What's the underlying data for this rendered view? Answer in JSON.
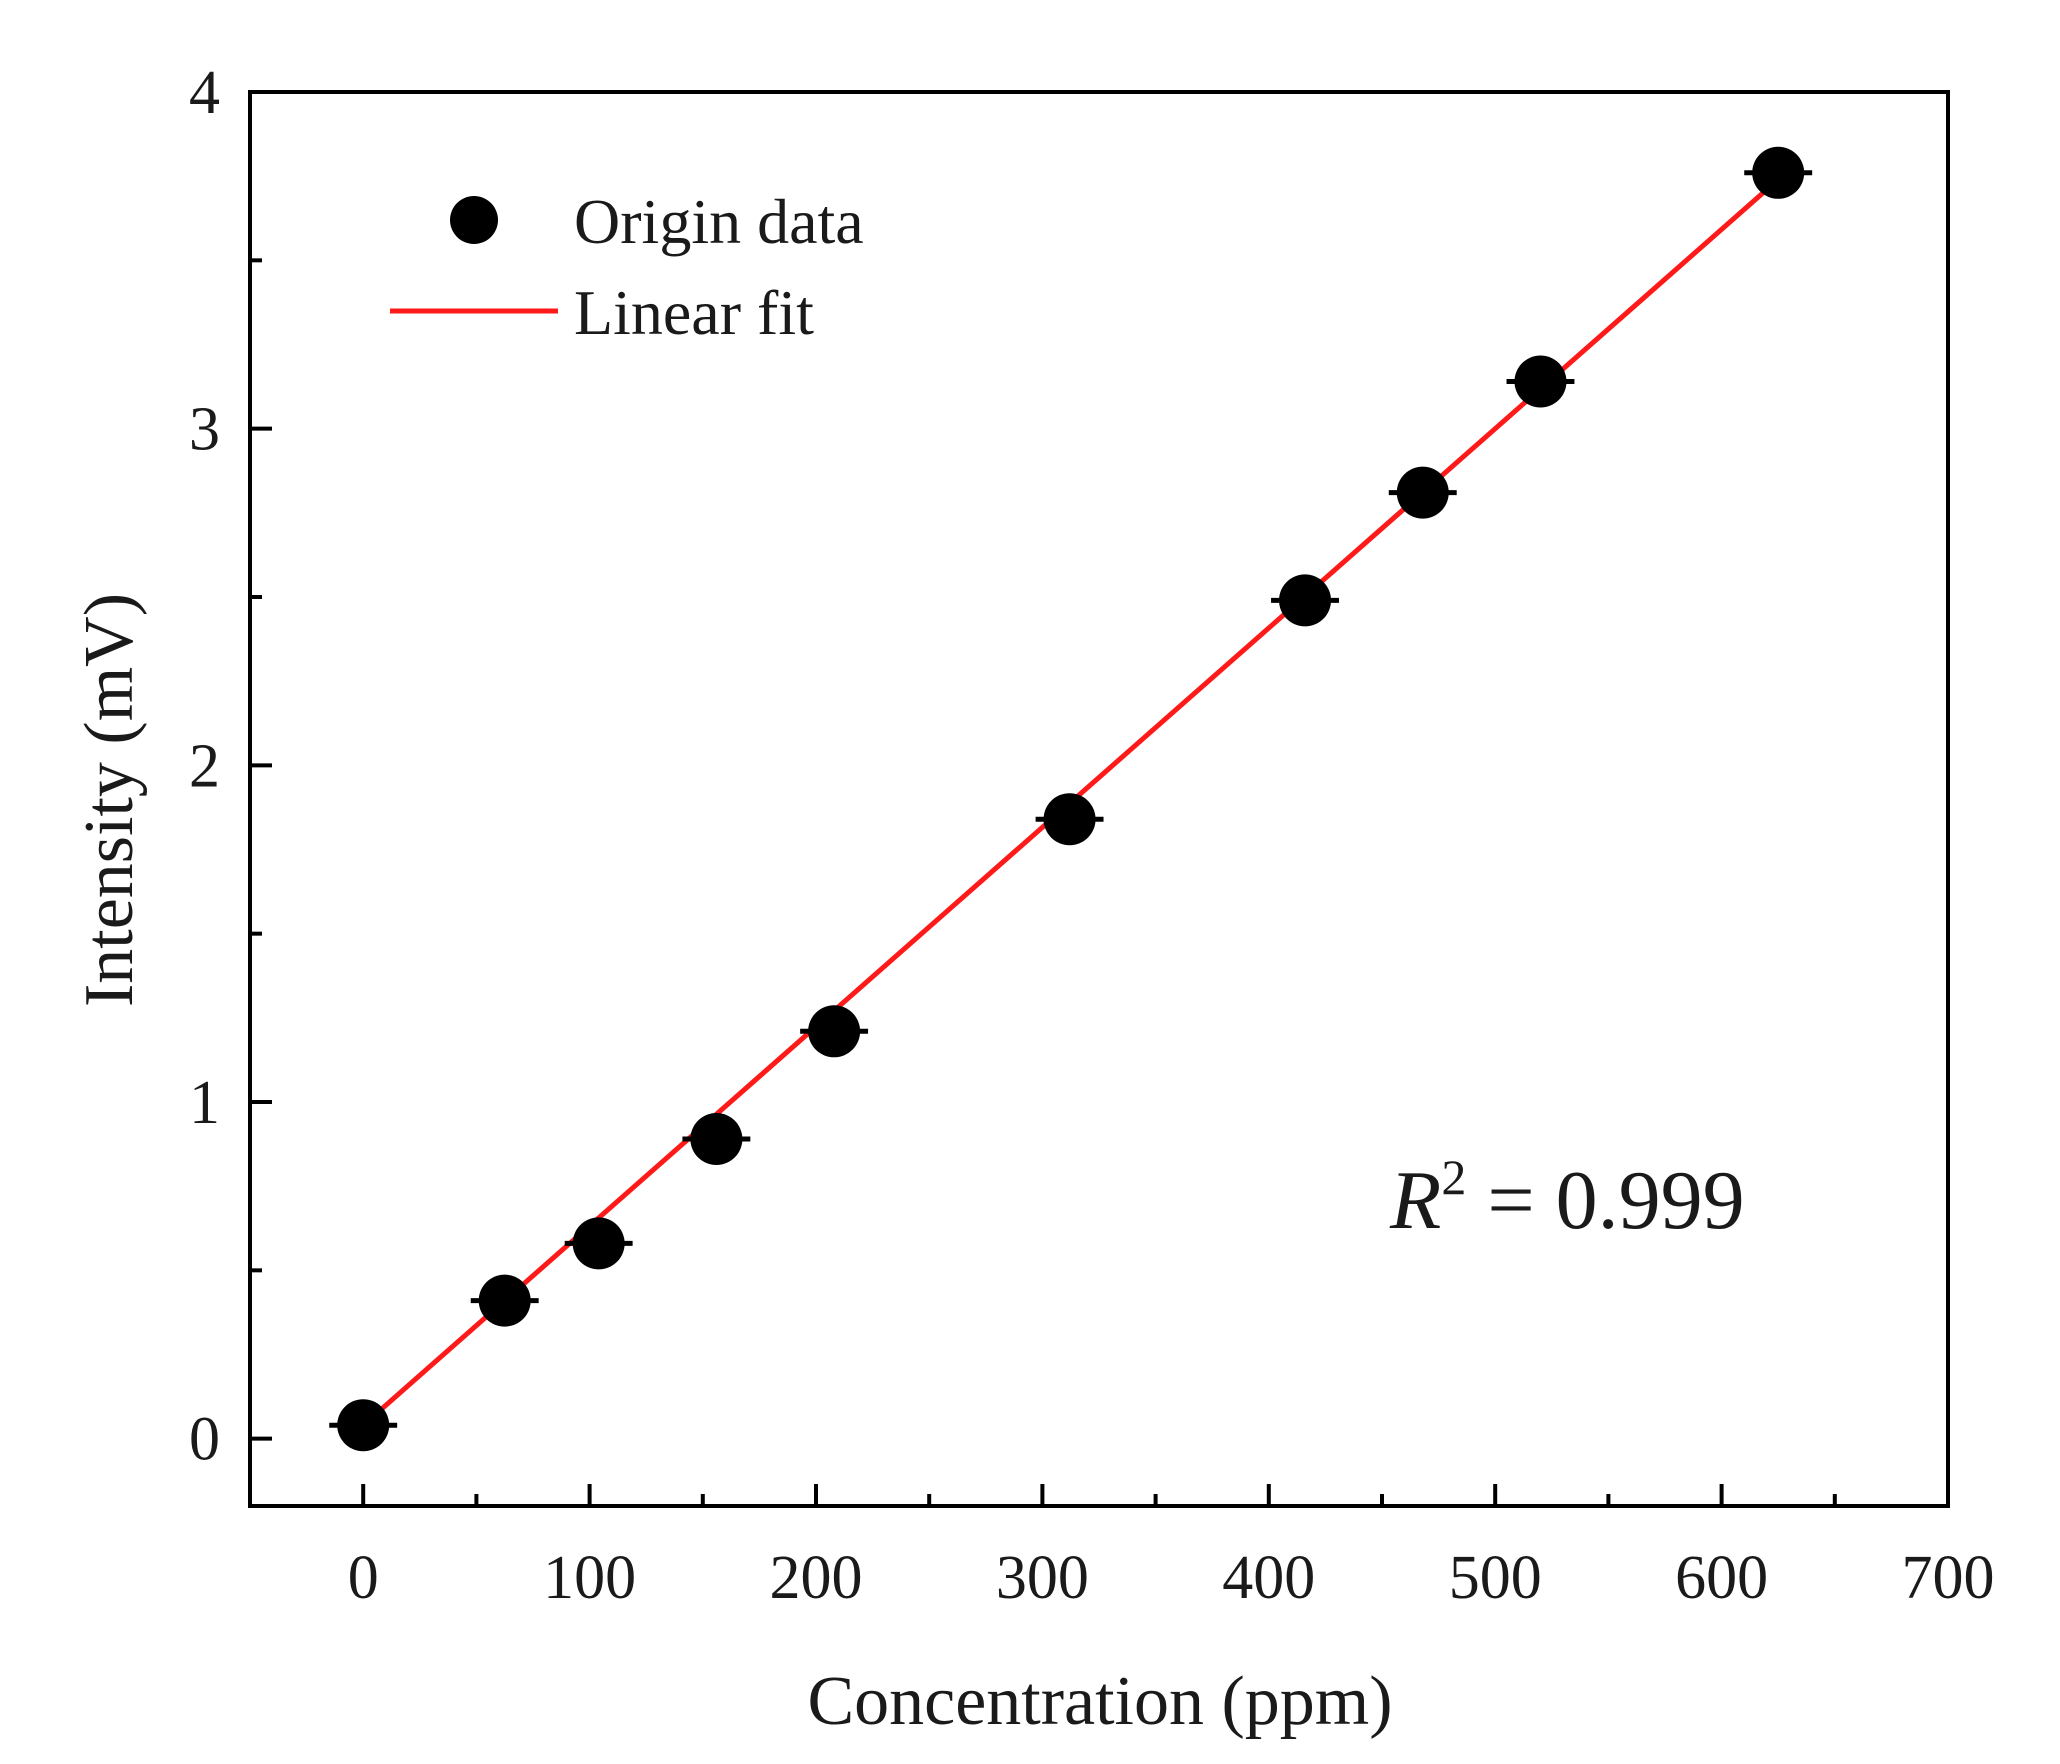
{
  "chart_data": {
    "type": "scatter",
    "title": "",
    "xlabel": "Concentration (ppm)",
    "ylabel": "Intensity (mV)",
    "xlim": [
      -50,
      700
    ],
    "ylim": [
      -0.2,
      4
    ],
    "x_ticks": [
      0,
      100,
      200,
      300,
      400,
      500,
      600,
      700
    ],
    "x_tick_labels": [
      "0",
      "100",
      "200",
      "300",
      "400",
      "500",
      "600",
      "700"
    ],
    "y_ticks": [
      0,
      1,
      2,
      3,
      4
    ],
    "y_tick_labels": [
      "0",
      "1",
      "2",
      "3",
      "4"
    ],
    "grid": false,
    "legend_position": "top-left",
    "series": [
      {
        "name": "Origin data",
        "kind": "scatter",
        "color": "#000000",
        "x": [
          0,
          62.5,
          104,
          156,
          208,
          312,
          416,
          468,
          520,
          625
        ],
        "y": [
          0.04,
          0.41,
          0.58,
          0.89,
          1.21,
          1.84,
          2.49,
          2.81,
          3.14,
          3.76
        ],
        "x_error": [
          15,
          15,
          15,
          15,
          15,
          15,
          15,
          15,
          15,
          15
        ]
      },
      {
        "name": "Linear fit",
        "kind": "line",
        "color": "#ff1a1a",
        "x": [
          0,
          625
        ],
        "y": [
          0.04,
          3.74
        ]
      }
    ],
    "annotation": {
      "r_symbol": "R",
      "superscript": "2",
      "text": " = 0.999"
    }
  }
}
